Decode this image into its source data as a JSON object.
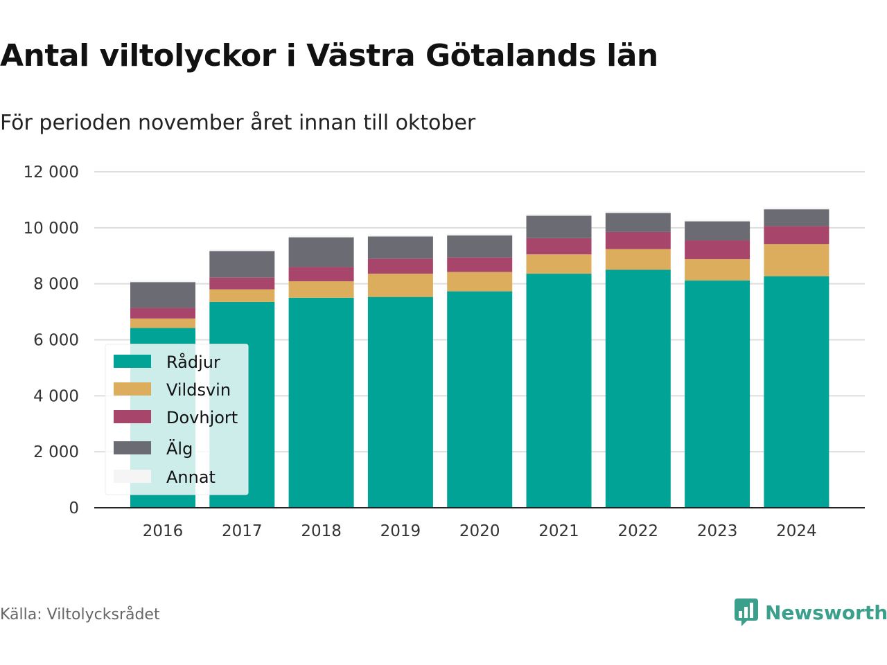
{
  "title": "Antal viltolyckor i Västra Götalands län",
  "subtitle": "För perioden november året innan till oktober",
  "source": "Källa: Viltolycksrådet",
  "brand": {
    "name": "Newsworthy",
    "color": "#3a9f8b",
    "icon": "newsworthy-logo-icon"
  },
  "chart_data": {
    "type": "bar",
    "stacked": true,
    "categories": [
      "2016",
      "2017",
      "2018",
      "2019",
      "2020",
      "2021",
      "2022",
      "2023",
      "2024"
    ],
    "series": [
      {
        "name": "Rådjur",
        "color": "#00a396",
        "values": [
          6420,
          7350,
          7500,
          7530,
          7730,
          8360,
          8500,
          8120,
          8270
        ]
      },
      {
        "name": "Vildsvin",
        "color": "#dbad5d",
        "values": [
          340,
          450,
          590,
          830,
          690,
          690,
          740,
          760,
          1150
        ]
      },
      {
        "name": "Dovhjort",
        "color": "#a8456b",
        "values": [
          380,
          420,
          510,
          540,
          520,
          580,
          610,
          670,
          640
        ]
      },
      {
        "name": "Älg",
        "color": "#6b6b73",
        "values": [
          920,
          950,
          1060,
          790,
          790,
          800,
          680,
          680,
          600
        ]
      },
      {
        "name": "Annat",
        "color": "#f5f5f5",
        "values": [
          60,
          60,
          60,
          60,
          60,
          60,
          60,
          60,
          60
        ]
      }
    ],
    "y_ticks": [
      "0",
      "2 000",
      "4 000",
      "6 000",
      "8 000",
      "10 000",
      "12 000"
    ],
    "ylim": [
      0,
      12000
    ],
    "xlabel": "",
    "ylabel": "",
    "grid": true,
    "legend_position": "bottom-left inside plot"
  }
}
